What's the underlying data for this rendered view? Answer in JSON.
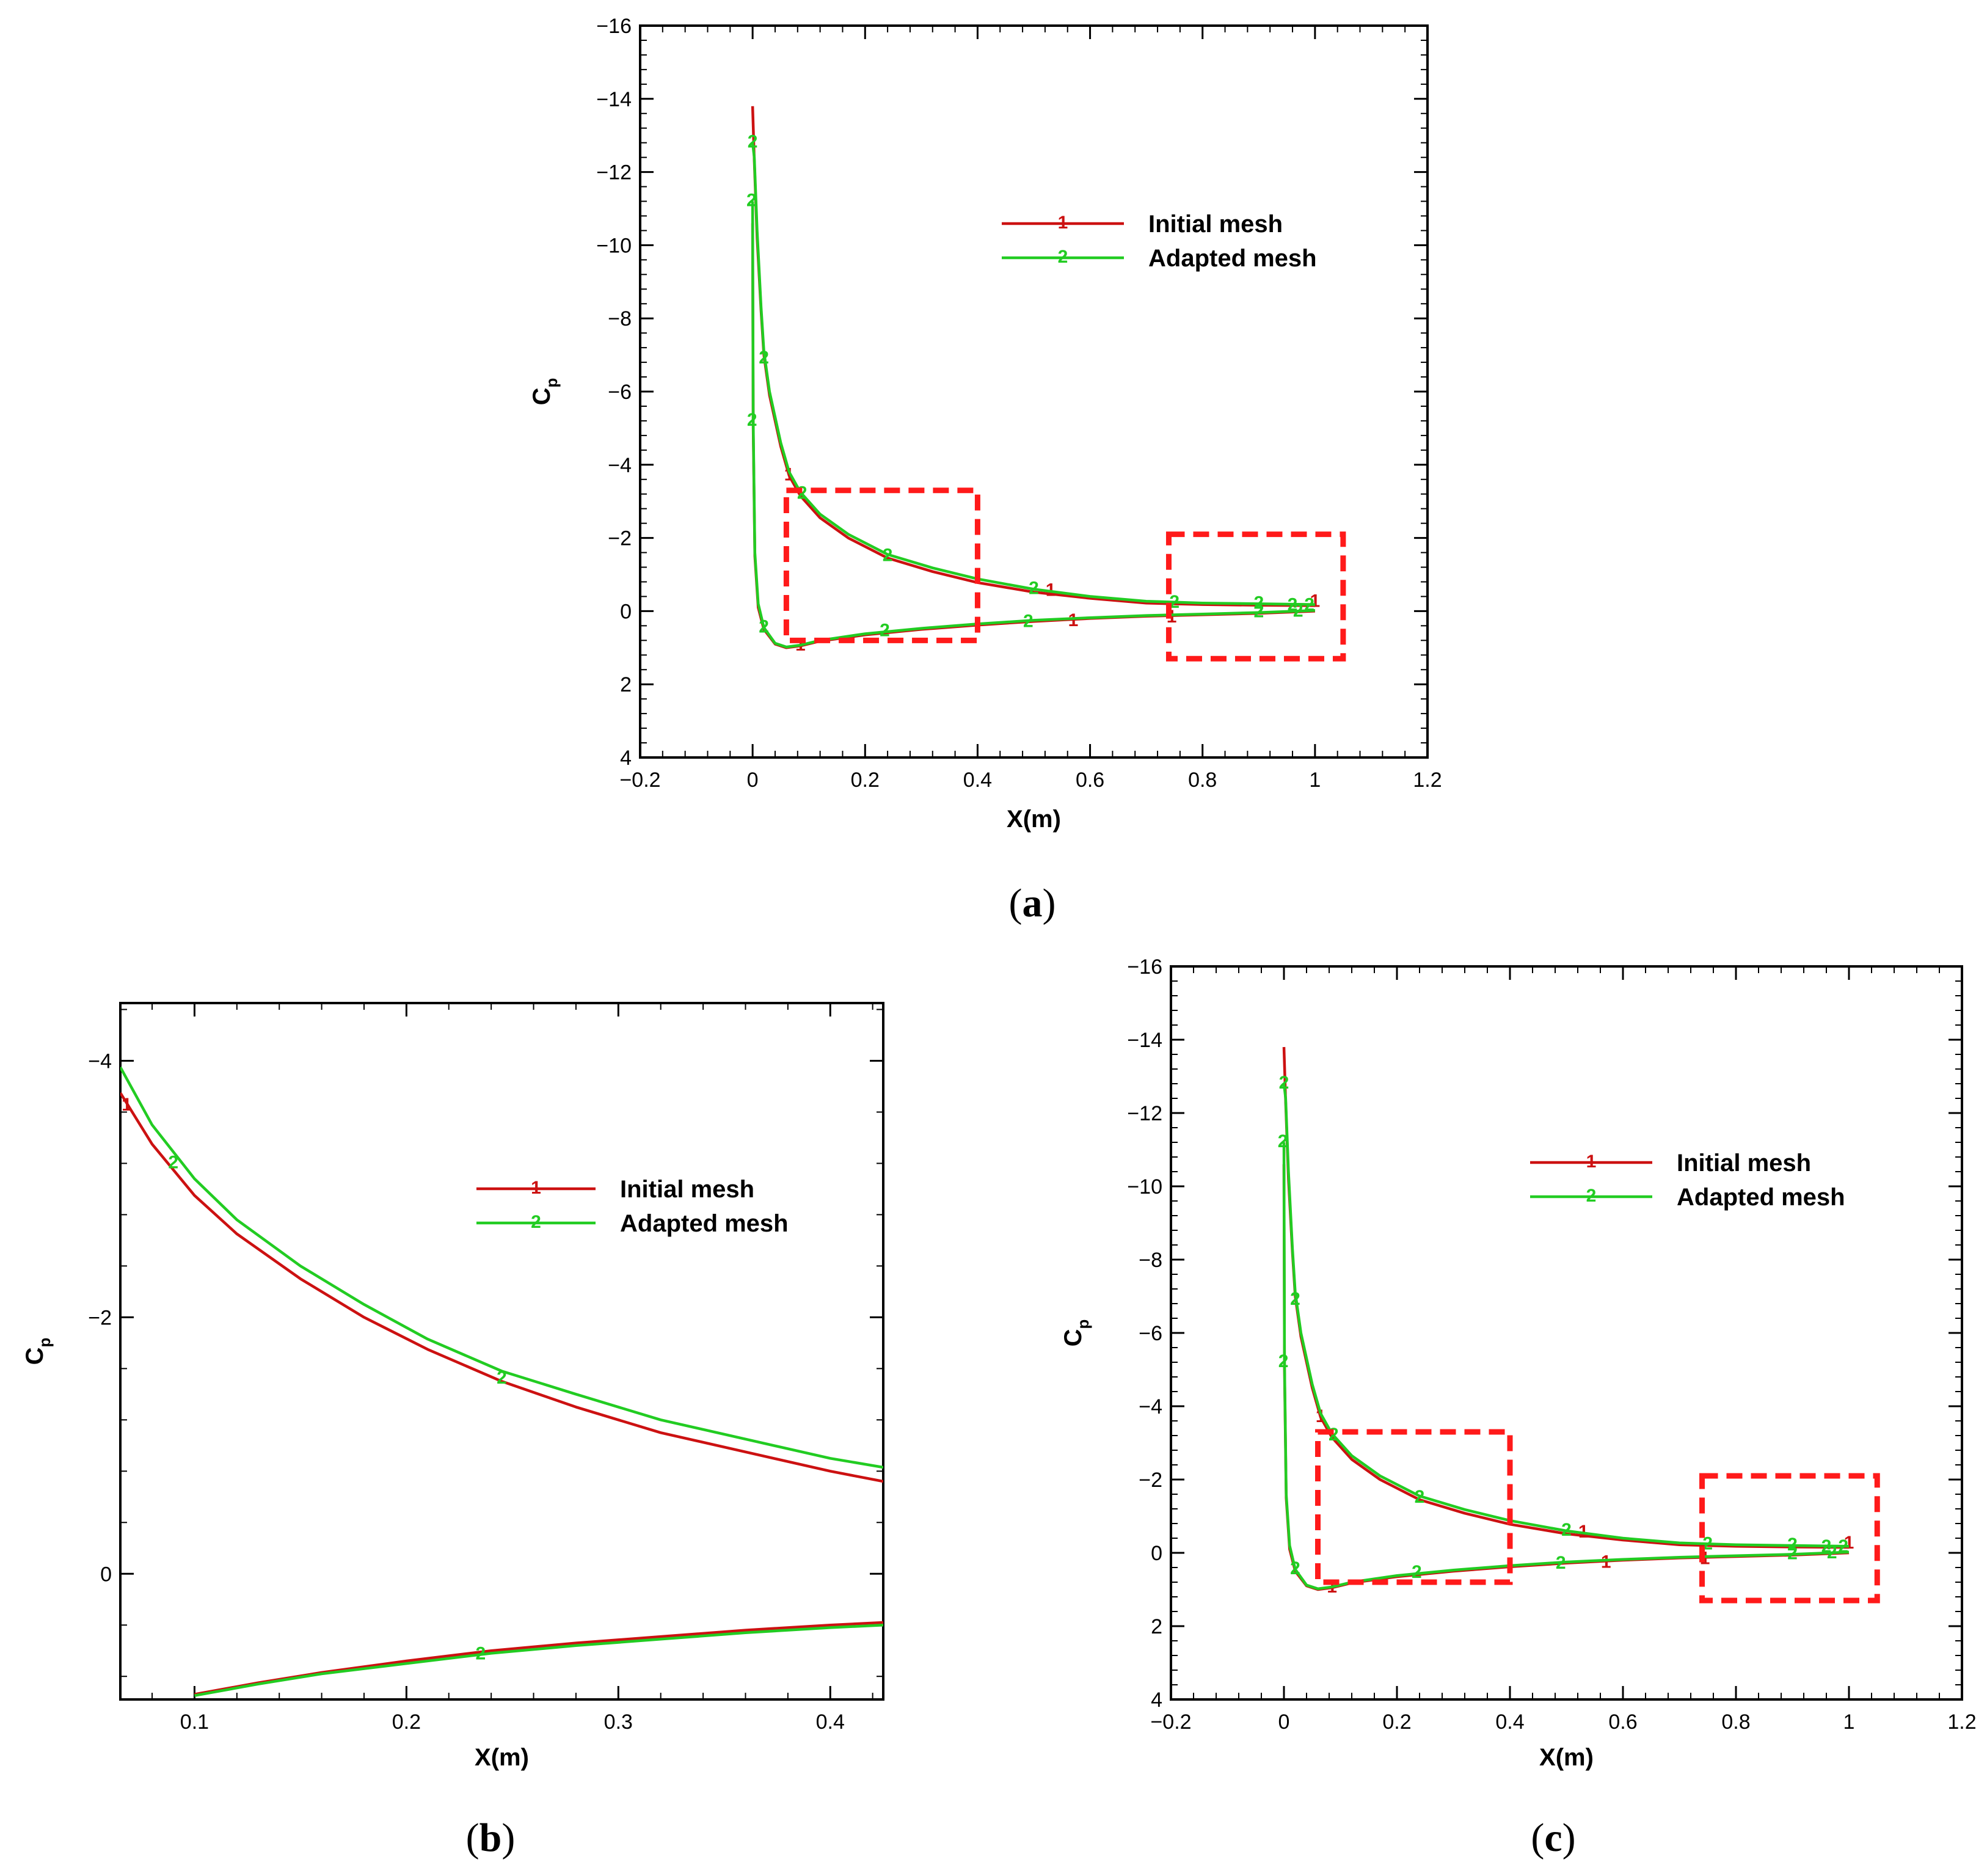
{
  "chart_data": [
    {
      "panel": "a",
      "type": "line",
      "xlabel": "X(m)",
      "ylabel": "C",
      "ylabel_sub": "p",
      "xlim": [
        -0.2,
        1.2
      ],
      "ylim": [
        4,
        -16
      ],
      "x_ticks": [
        "−0.2",
        "0",
        "0.2",
        "0.4",
        "0.6",
        "0.8",
        "1",
        "1.2"
      ],
      "y_ticks": [
        "−16",
        "−14",
        "−12",
        "−10",
        "−8",
        "−6",
        "−4",
        "−2",
        "0",
        "2",
        "4"
      ],
      "legend": [
        {
          "marker": "1",
          "label": "Initial mesh",
          "color": "#cc1111"
        },
        {
          "marker": "2",
          "label": "Adapted mesh",
          "color": "#22cc22"
        }
      ],
      "highlight_boxes": [
        {
          "x": [
            0.06,
            0.4
          ],
          "y": [
            -3.3,
            0.8
          ]
        },
        {
          "x": [
            0.74,
            1.05
          ],
          "y": [
            -2.1,
            1.3
          ]
        }
      ],
      "series": [
        {
          "name": "Initial mesh",
          "color": "#cc1111",
          "upper": {
            "x": [
              0.0,
              0.003,
              0.008,
              0.015,
              0.02,
              0.03,
              0.05,
              0.065,
              0.085,
              0.12,
              0.17,
              0.24,
              0.32,
              0.4,
              0.5,
              0.6,
              0.7,
              0.8,
              0.9,
              1.0
            ],
            "y": [
              -13.8,
              -12.3,
              -10.2,
              -8.2,
              -7.0,
              -5.9,
              -4.5,
              -3.7,
              -3.15,
              -2.55,
              -2.0,
              -1.45,
              -1.08,
              -0.78,
              -0.52,
              -0.35,
              -0.22,
              -0.18,
              -0.16,
              -0.15
            ]
          },
          "lower": {
            "x": [
              0.0,
              0.001,
              0.004,
              0.01,
              0.02,
              0.04,
              0.06,
              0.085,
              0.12,
              0.2,
              0.3,
              0.4,
              0.5,
              0.6,
              0.7,
              0.8,
              0.9,
              1.0
            ],
            "y": [
              -10.6,
              -5.0,
              -1.5,
              -0.1,
              0.5,
              0.9,
              1.0,
              0.95,
              0.82,
              0.65,
              0.5,
              0.38,
              0.28,
              0.2,
              0.14,
              0.1,
              0.06,
              0.0
            ]
          },
          "markers": [
            {
              "x": 0.065,
              "y": -3.7
            },
            {
              "x": 0.085,
              "y": 0.95
            },
            {
              "x": 0.53,
              "y": -0.55
            },
            {
              "x": 0.57,
              "y": 0.28
            },
            {
              "x": 0.745,
              "y": 0.18
            },
            {
              "x": 1.0,
              "y": -0.25
            }
          ]
        },
        {
          "name": "Adapted mesh",
          "color": "#22cc22",
          "upper": {
            "x": [
              0.0,
              0.003,
              0.008,
              0.015,
              0.02,
              0.03,
              0.05,
              0.065,
              0.085,
              0.12,
              0.17,
              0.24,
              0.32,
              0.4,
              0.5,
              0.6,
              0.7,
              0.8,
              0.9,
              1.0
            ],
            "y": [
              -12.8,
              -12.4,
              -10.4,
              -8.3,
              -7.1,
              -6.0,
              -4.6,
              -3.8,
              -3.25,
              -2.65,
              -2.1,
              -1.55,
              -1.18,
              -0.88,
              -0.6,
              -0.4,
              -0.27,
              -0.22,
              -0.2,
              -0.18
            ]
          },
          "lower": {
            "x": [
              0.0,
              0.001,
              0.004,
              0.01,
              0.02,
              0.04,
              0.06,
              0.085,
              0.12,
              0.2,
              0.3,
              0.4,
              0.5,
              0.6,
              0.7,
              0.8,
              0.9,
              1.0
            ],
            "y": [
              -11.2,
              -5.2,
              -1.6,
              -0.2,
              0.45,
              0.88,
              0.98,
              0.93,
              0.8,
              0.62,
              0.47,
              0.35,
              0.25,
              0.18,
              0.12,
              0.08,
              0.04,
              -0.02
            ]
          },
          "markers": [
            {
              "x": 0.0,
              "y": -12.8
            },
            {
              "x": -0.002,
              "y": -11.2
            },
            {
              "x": 0.02,
              "y": -6.9
            },
            {
              "x": -0.001,
              "y": -5.2
            },
            {
              "x": 0.088,
              "y": -3.2
            },
            {
              "x": 0.02,
              "y": 0.45
            },
            {
              "x": 0.24,
              "y": -1.5
            },
            {
              "x": 0.235,
              "y": 0.55
            },
            {
              "x": 0.5,
              "y": -0.6
            },
            {
              "x": 0.49,
              "y": 0.3
            },
            {
              "x": 0.75,
              "y": -0.22
            },
            {
              "x": 0.9,
              "y": -0.2
            },
            {
              "x": 0.9,
              "y": 0.04
            },
            {
              "x": 0.96,
              "y": -0.15
            },
            {
              "x": 0.97,
              "y": 0.02
            },
            {
              "x": 0.99,
              "y": -0.15
            }
          ]
        }
      ],
      "caption": "a"
    },
    {
      "panel": "b",
      "type": "line",
      "xlabel": "X(m)",
      "ylabel": "C",
      "ylabel_sub": "p",
      "xlim": [
        0.065,
        0.425
      ],
      "ylim": [
        0.98,
        -4.45
      ],
      "x_ticks": [
        "0.1",
        "0.2",
        "0.3",
        "0.4"
      ],
      "y_ticks": [
        "−4",
        "−2",
        "0"
      ],
      "legend": [
        {
          "marker": "1",
          "label": "Initial mesh",
          "color": "#cc1111"
        },
        {
          "marker": "2",
          "label": "Adapted mesh",
          "color": "#22cc22"
        }
      ],
      "series": [
        {
          "name": "Initial mesh",
          "color": "#cc1111",
          "upper": {
            "x": [
              0.065,
              0.08,
              0.1,
              0.12,
              0.15,
              0.18,
              0.21,
              0.245,
              0.28,
              0.32,
              0.36,
              0.4,
              0.425
            ],
            "y": [
              -3.75,
              -3.35,
              -2.95,
              -2.65,
              -2.3,
              -2.0,
              -1.75,
              -1.5,
              -1.3,
              -1.1,
              -0.95,
              -0.8,
              -0.72
            ]
          },
          "lower": {
            "x": [
              0.1,
              0.13,
              0.16,
              0.2,
              0.24,
              0.28,
              0.32,
              0.36,
              0.4,
              0.425
            ],
            "y": [
              0.94,
              0.85,
              0.77,
              0.68,
              0.6,
              0.54,
              0.49,
              0.44,
              0.4,
              0.38
            ]
          },
          "markers": [
            {
              "x": 0.068,
              "y": -3.65
            }
          ]
        },
        {
          "name": "Adapted mesh",
          "color": "#22cc22",
          "upper": {
            "x": [
              0.065,
              0.08,
              0.1,
              0.12,
              0.15,
              0.18,
              0.21,
              0.245,
              0.28,
              0.32,
              0.36,
              0.4,
              0.425
            ],
            "y": [
              -3.95,
              -3.5,
              -3.08,
              -2.76,
              -2.4,
              -2.1,
              -1.83,
              -1.58,
              -1.4,
              -1.2,
              -1.05,
              -0.9,
              -0.83
            ]
          },
          "lower": {
            "x": [
              0.1,
              0.13,
              0.16,
              0.2,
              0.24,
              0.28,
              0.32,
              0.36,
              0.4,
              0.425
            ],
            "y": [
              0.95,
              0.86,
              0.78,
              0.7,
              0.62,
              0.56,
              0.51,
              0.46,
              0.42,
              0.4
            ]
          },
          "markers": [
            {
              "x": 0.09,
              "y": -3.2
            },
            {
              "x": 0.245,
              "y": -1.52
            },
            {
              "x": 0.235,
              "y": 0.63
            }
          ]
        }
      ],
      "caption": "b"
    },
    {
      "panel": "c",
      "type": "line",
      "xlabel": "X(m)",
      "ylabel": "C",
      "ylabel_sub": "p",
      "xlim": [
        -0.2,
        1.2
      ],
      "ylim": [
        4,
        -16
      ],
      "x_ticks": [
        "−0.2",
        "0",
        "0.2",
        "0.4",
        "0.6",
        "0.8",
        "1",
        "1.2"
      ],
      "y_ticks": [
        "−16",
        "−14",
        "−12",
        "−10",
        "−8",
        "−6",
        "−4",
        "−2",
        "0",
        "2",
        "4"
      ],
      "legend": [
        {
          "marker": "1",
          "label": "Initial mesh",
          "color": "#cc1111"
        },
        {
          "marker": "2",
          "label": "Adapted mesh",
          "color": "#22cc22"
        }
      ],
      "highlight_boxes": [
        {
          "x": [
            0.06,
            0.4
          ],
          "y": [
            -3.3,
            0.8
          ]
        },
        {
          "x": [
            0.74,
            1.05
          ],
          "y": [
            -2.1,
            1.3
          ]
        }
      ],
      "series": [
        {
          "name": "Initial mesh",
          "color": "#cc1111",
          "upper": {
            "x": [
              0.0,
              0.003,
              0.008,
              0.015,
              0.02,
              0.03,
              0.05,
              0.065,
              0.085,
              0.12,
              0.17,
              0.24,
              0.32,
              0.4,
              0.5,
              0.6,
              0.7,
              0.8,
              0.9,
              1.0
            ],
            "y": [
              -13.8,
              -12.3,
              -10.2,
              -8.2,
              -7.0,
              -5.9,
              -4.5,
              -3.7,
              -3.15,
              -2.55,
              -2.0,
              -1.45,
              -1.08,
              -0.78,
              -0.52,
              -0.35,
              -0.22,
              -0.18,
              -0.16,
              -0.15
            ]
          },
          "lower": {
            "x": [
              0.0,
              0.001,
              0.004,
              0.01,
              0.02,
              0.04,
              0.06,
              0.085,
              0.12,
              0.2,
              0.3,
              0.4,
              0.5,
              0.6,
              0.7,
              0.8,
              0.9,
              1.0
            ],
            "y": [
              -10.6,
              -5.0,
              -1.5,
              -0.1,
              0.5,
              0.9,
              1.0,
              0.95,
              0.82,
              0.65,
              0.5,
              0.38,
              0.28,
              0.2,
              0.14,
              0.1,
              0.06,
              0.0
            ]
          },
          "markers": [
            {
              "x": 0.065,
              "y": -3.7
            },
            {
              "x": 0.085,
              "y": 0.95
            },
            {
              "x": 0.53,
              "y": -0.55
            },
            {
              "x": 0.57,
              "y": 0.28
            },
            {
              "x": 0.745,
              "y": 0.18
            },
            {
              "x": 1.0,
              "y": -0.25
            }
          ]
        },
        {
          "name": "Adapted mesh",
          "color": "#22cc22",
          "upper": {
            "x": [
              0.0,
              0.003,
              0.008,
              0.015,
              0.02,
              0.03,
              0.05,
              0.065,
              0.085,
              0.12,
              0.17,
              0.24,
              0.32,
              0.4,
              0.5,
              0.6,
              0.7,
              0.8,
              0.9,
              1.0
            ],
            "y": [
              -12.8,
              -12.4,
              -10.4,
              -8.3,
              -7.1,
              -6.0,
              -4.6,
              -3.8,
              -3.25,
              -2.65,
              -2.1,
              -1.55,
              -1.18,
              -0.88,
              -0.6,
              -0.4,
              -0.27,
              -0.22,
              -0.2,
              -0.18
            ]
          },
          "lower": {
            "x": [
              0.0,
              0.001,
              0.004,
              0.01,
              0.02,
              0.04,
              0.06,
              0.085,
              0.12,
              0.2,
              0.3,
              0.4,
              0.5,
              0.6,
              0.7,
              0.8,
              0.9,
              1.0
            ],
            "y": [
              -11.2,
              -5.2,
              -1.6,
              -0.2,
              0.45,
              0.88,
              0.98,
              0.93,
              0.8,
              0.62,
              0.47,
              0.35,
              0.25,
              0.18,
              0.12,
              0.08,
              0.04,
              -0.02
            ]
          },
          "markers": [
            {
              "x": 0.0,
              "y": -12.8
            },
            {
              "x": -0.002,
              "y": -11.2
            },
            {
              "x": 0.02,
              "y": -6.9
            },
            {
              "x": -0.001,
              "y": -5.2
            },
            {
              "x": 0.088,
              "y": -3.2
            },
            {
              "x": 0.02,
              "y": 0.45
            },
            {
              "x": 0.24,
              "y": -1.5
            },
            {
              "x": 0.235,
              "y": 0.55
            },
            {
              "x": 0.5,
              "y": -0.6
            },
            {
              "x": 0.49,
              "y": 0.3
            },
            {
              "x": 0.75,
              "y": -0.22
            },
            {
              "x": 0.9,
              "y": -0.2
            },
            {
              "x": 0.9,
              "y": 0.04
            },
            {
              "x": 0.96,
              "y": -0.15
            },
            {
              "x": 0.97,
              "y": 0.02
            },
            {
              "x": 0.99,
              "y": -0.15
            }
          ]
        }
      ],
      "caption": "c"
    }
  ]
}
